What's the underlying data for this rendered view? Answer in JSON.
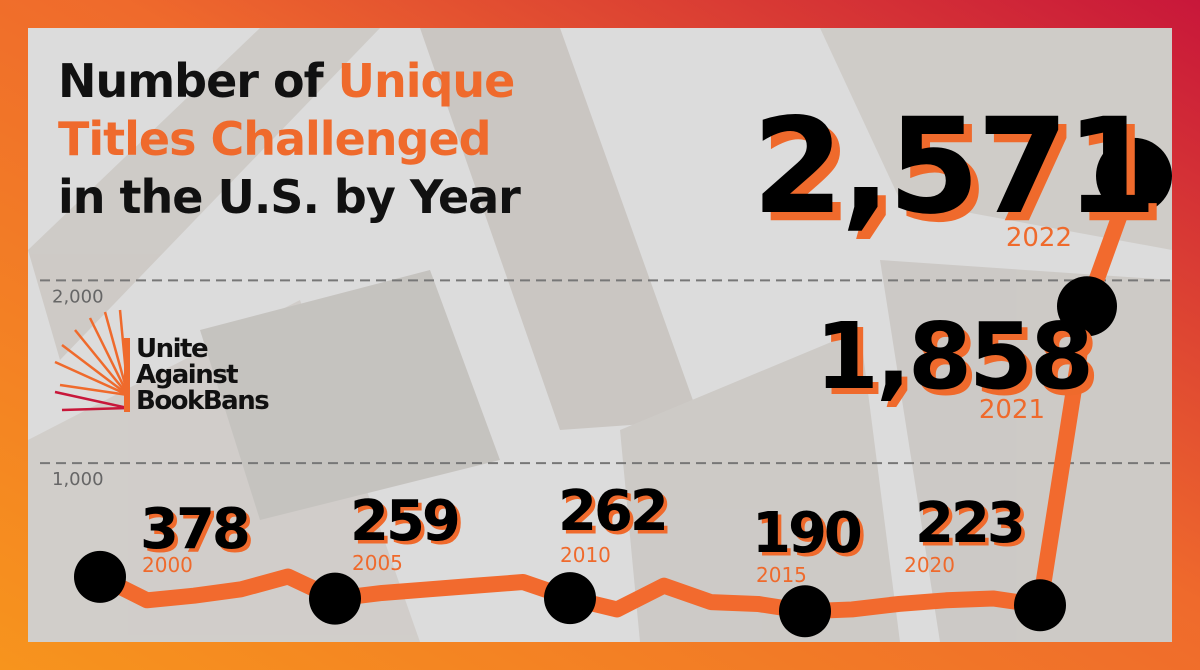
{
  "chart_data": {
    "type": "line",
    "title_lines": [
      [
        {
          "text": "Number of ",
          "highlight": false
        },
        {
          "text": "Unique",
          "highlight": true
        }
      ],
      [
        {
          "text": "Titles Challenged",
          "highlight": true
        }
      ],
      [
        {
          "text": "in the U.S. by Year",
          "highlight": false
        }
      ]
    ],
    "logo_lines": [
      "Unite",
      "Against",
      "BookBans"
    ],
    "x": [
      2000,
      2001,
      2002,
      2003,
      2004,
      2005,
      2006,
      2007,
      2008,
      2009,
      2010,
      2011,
      2012,
      2013,
      2014,
      2015,
      2016,
      2017,
      2018,
      2019,
      2020,
      2021,
      2022
    ],
    "series": [
      {
        "color": "#f26a2e",
        "values": [
          378,
          250,
          275,
          310,
          380,
          259,
          290,
          310,
          330,
          350,
          262,
          200,
          330,
          240,
          230,
          190,
          200,
          230,
          250,
          260,
          223,
          1858,
          2571
        ],
        "value_labels": [
          "378",
          null,
          null,
          null,
          null,
          "259",
          null,
          null,
          null,
          null,
          "262",
          null,
          null,
          null,
          null,
          "190",
          null,
          null,
          null,
          null,
          "223",
          "1,858",
          "2,571"
        ]
      }
    ],
    "xlim": [
      2000,
      2022
    ],
    "ylim": [
      0,
      3380
    ],
    "yticks": [
      {
        "value": 1000,
        "label": "1,000"
      },
      {
        "value": 2000,
        "label": "2,000"
      }
    ],
    "grid": true
  }
}
